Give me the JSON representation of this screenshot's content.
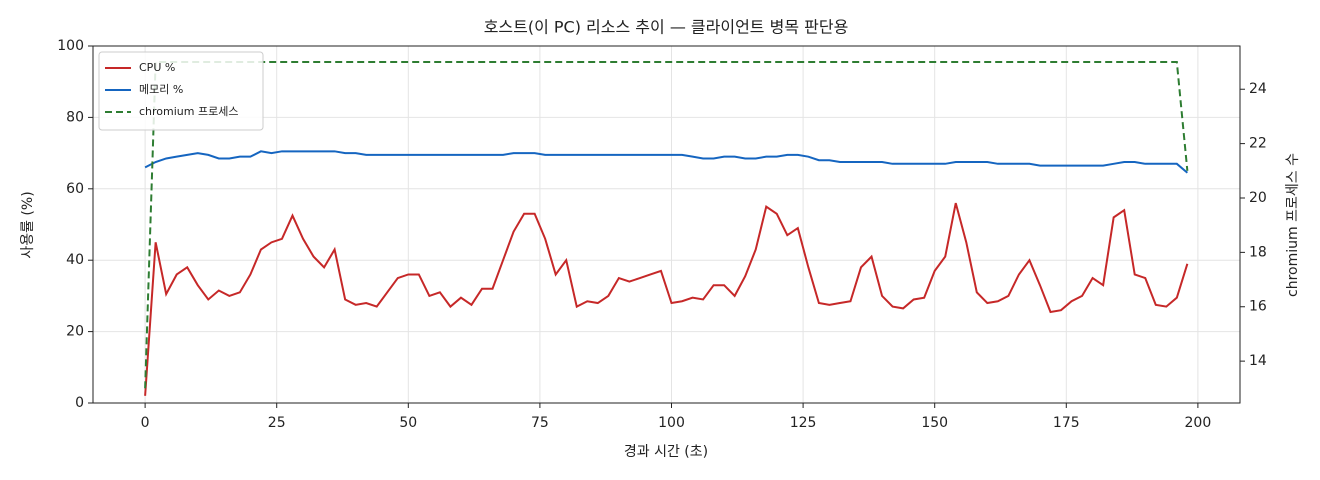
{
  "chart_data": {
    "type": "line",
    "title": "호스트(이 PC) 리소스 추이 — 클라이언트 병목 판단용",
    "xlabel": "경과 시간 (초)",
    "ylabel": "사용률 (%)",
    "y2label": "chromium 프로세스 수",
    "x": [
      0,
      2,
      4,
      6,
      8,
      10,
      12,
      14,
      16,
      18,
      20,
      22,
      24,
      26,
      28,
      30,
      32,
      34,
      36,
      38,
      40,
      42,
      44,
      46,
      48,
      50,
      52,
      54,
      56,
      58,
      60,
      62,
      64,
      66,
      68,
      70,
      72,
      74,
      76,
      78,
      80,
      82,
      84,
      86,
      88,
      90,
      92,
      94,
      96,
      98,
      100,
      102,
      104,
      106,
      108,
      110,
      112,
      114,
      116,
      118,
      120,
      122,
      124,
      126,
      128,
      130,
      132,
      134,
      136,
      138,
      140,
      142,
      144,
      146,
      148,
      150,
      152,
      154,
      156,
      158,
      160,
      162,
      164,
      166,
      168,
      170,
      172,
      174,
      176,
      178,
      180,
      182,
      184,
      186,
      188,
      190,
      192,
      194,
      196,
      198
    ],
    "series": [
      {
        "name": "CPU %",
        "color": "#c62828",
        "linestyle": "solid",
        "axis": "y",
        "values": [
          2,
          45,
          30.5,
          36,
          38,
          33,
          29,
          31.5,
          30,
          31,
          36,
          43,
          45,
          46,
          52.5,
          46,
          41,
          38,
          43,
          29,
          27.5,
          28,
          27,
          31,
          35,
          36,
          36,
          30,
          31,
          27,
          29.5,
          27.5,
          32,
          32,
          40,
          48,
          53,
          53,
          46,
          36,
          40,
          27,
          28.5,
          28,
          30,
          35,
          34,
          35,
          36,
          37,
          28,
          28.5,
          29.5,
          29,
          33,
          33,
          30,
          35.5,
          43,
          55,
          53,
          47,
          49,
          38,
          28,
          27.5,
          28,
          28.5,
          38,
          41,
          30,
          27,
          26.5,
          29,
          29.5,
          37,
          41,
          56,
          45,
          31,
          28,
          28.5,
          30,
          36,
          40,
          33,
          25.5,
          26,
          28.5,
          30,
          35,
          33,
          52,
          54,
          36,
          35,
          27.5,
          27,
          29.5,
          39
        ]
      },
      {
        "name": "메모리 %",
        "color": "#1565c0",
        "linestyle": "solid",
        "axis": "y",
        "values": [
          66,
          67.5,
          68.5,
          69,
          69.5,
          70,
          69.5,
          68.5,
          68.5,
          69,
          69,
          70.5,
          70,
          70.5,
          70.5,
          70.5,
          70.5,
          70.5,
          70.5,
          70,
          70,
          69.5,
          69.5,
          69.5,
          69.5,
          69.5,
          69.5,
          69.5,
          69.5,
          69.5,
          69.5,
          69.5,
          69.5,
          69.5,
          69.5,
          70,
          70,
          70,
          69.5,
          69.5,
          69.5,
          69.5,
          69.5,
          69.5,
          69.5,
          69.5,
          69.5,
          69.5,
          69.5,
          69.5,
          69.5,
          69.5,
          69,
          68.5,
          68.5,
          69,
          69,
          68.5,
          68.5,
          69,
          69,
          69.5,
          69.5,
          69,
          68,
          68,
          67.5,
          67.5,
          67.5,
          67.5,
          67.5,
          67,
          67,
          67,
          67,
          67,
          67,
          67.5,
          67.5,
          67.5,
          67.5,
          67,
          67,
          67,
          67,
          66.5,
          66.5,
          66.5,
          66.5,
          66.5,
          66.5,
          66.5,
          67,
          67.5,
          67.5,
          67,
          67,
          67,
          67,
          64.5
        ]
      },
      {
        "name": "chromium 프로세스",
        "color": "#2e7d32",
        "linestyle": "dashed",
        "axis": "y2",
        "values": [
          13,
          25,
          25,
          25,
          25,
          25,
          25,
          25,
          25,
          25,
          25,
          25,
          25,
          25,
          25,
          25,
          25,
          25,
          25,
          25,
          25,
          25,
          25,
          25,
          25,
          25,
          25,
          25,
          25,
          25,
          25,
          25,
          25,
          25,
          25,
          25,
          25,
          25,
          25,
          25,
          25,
          25,
          25,
          25,
          25,
          25,
          25,
          25,
          25,
          25,
          25,
          25,
          25,
          25,
          25,
          25,
          25,
          25,
          25,
          25,
          25,
          25,
          25,
          25,
          25,
          25,
          25,
          25,
          25,
          25,
          25,
          25,
          25,
          25,
          25,
          25,
          25,
          25,
          25,
          25,
          25,
          25,
          25,
          25,
          25,
          25,
          25,
          25,
          25,
          25,
          25,
          25,
          25,
          25,
          25,
          25,
          25,
          25,
          25,
          21
        ]
      }
    ],
    "xlim": [
      -9.9,
      208
    ],
    "xticks": [
      0,
      25,
      50,
      75,
      100,
      125,
      150,
      175,
      200
    ],
    "ylim": [
      0,
      100
    ],
    "yticks": [
      0,
      20,
      40,
      60,
      80,
      100
    ],
    "y2lim": [
      12.46,
      25.59
    ],
    "y2ticks": [
      14,
      16,
      18,
      20,
      22,
      24
    ],
    "grid": true,
    "legend": "upper left"
  }
}
